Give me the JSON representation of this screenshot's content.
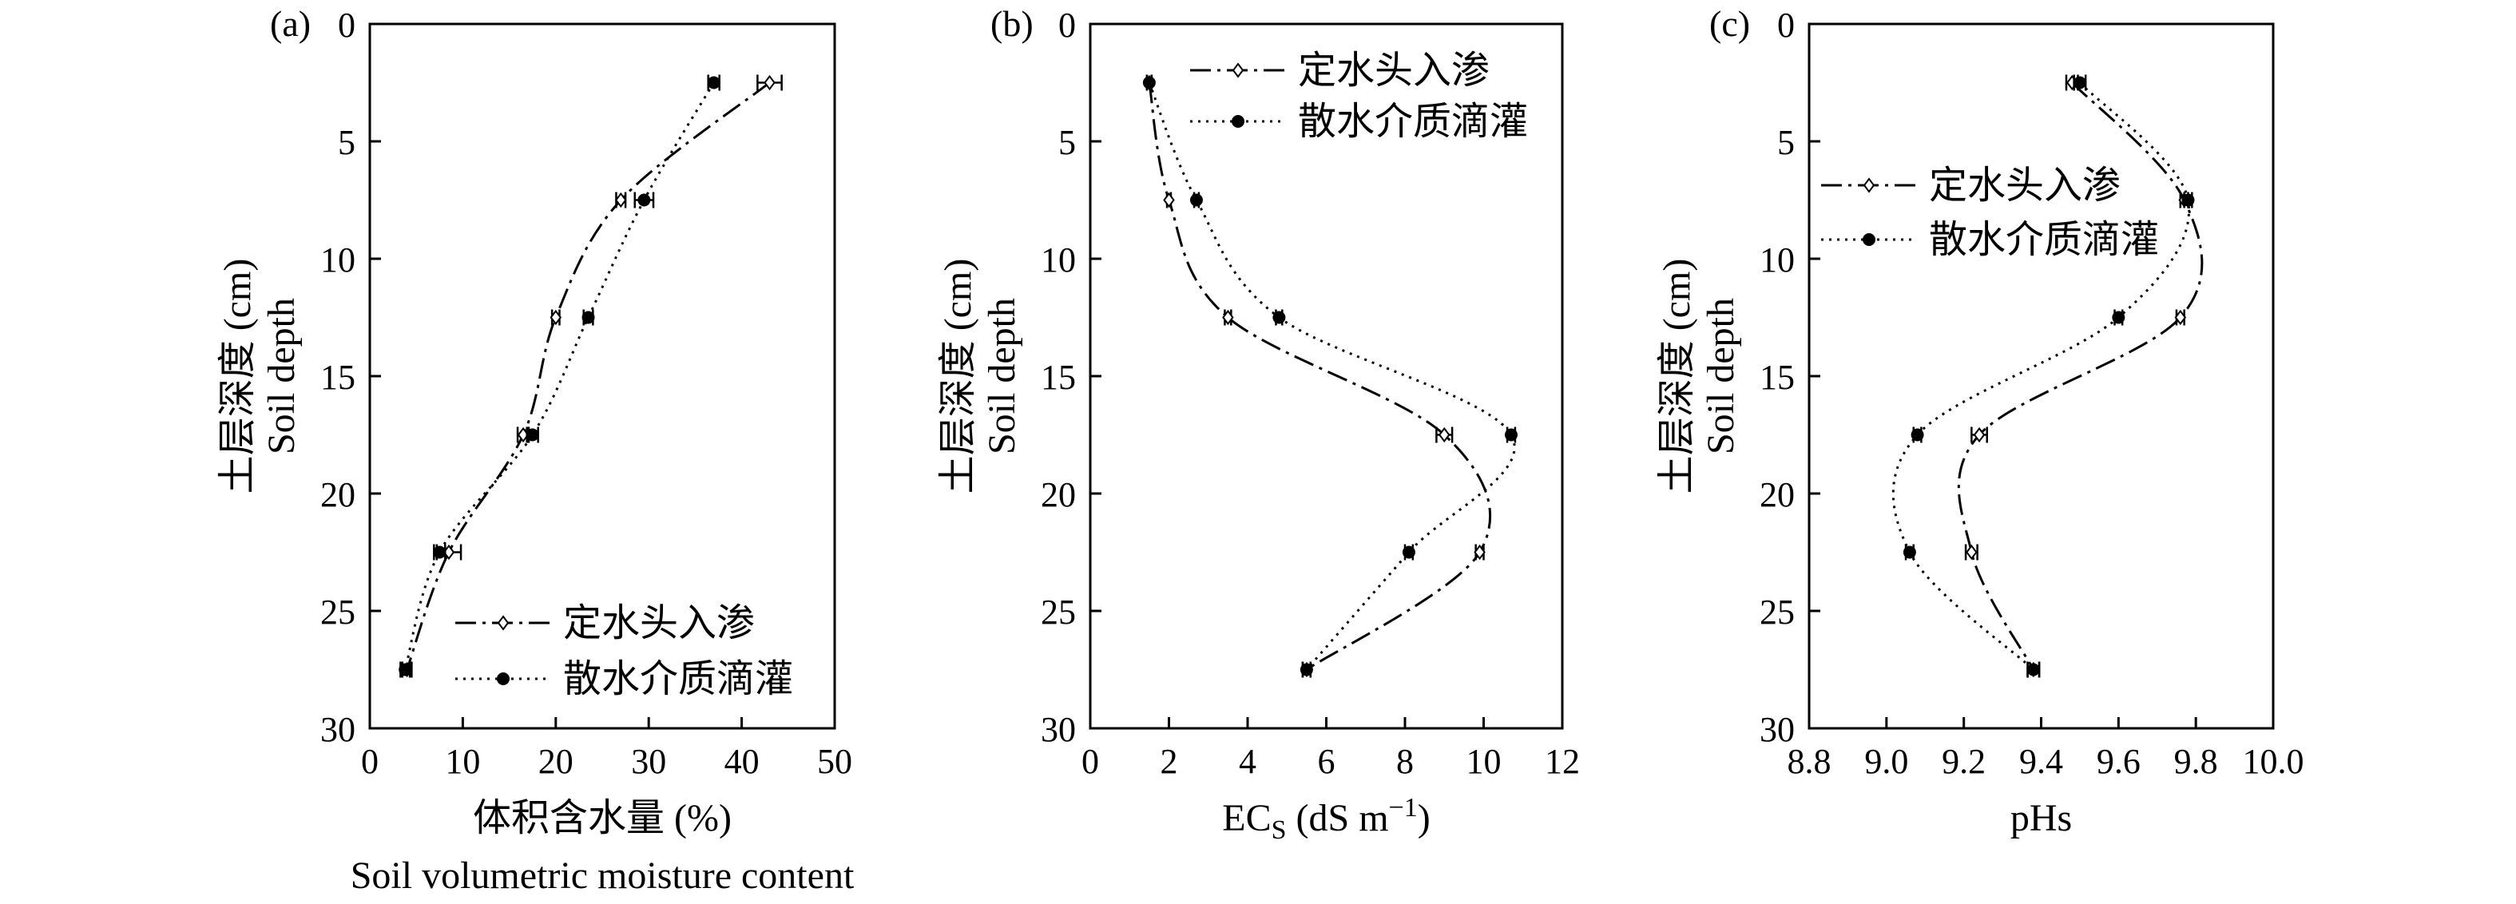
{
  "chart_data": [
    {
      "type": "line",
      "panel_label": "(a)",
      "xlabel": "体积含水量 (%)",
      "xlabel2": "Soil volumetric moisture content",
      "ylabel": "土层深度 (cm)",
      "ylabel2": "Soil depth",
      "xlim": [
        0,
        50
      ],
      "ylim": [
        0,
        30
      ],
      "y_inverted": true,
      "x_ticks": [
        0,
        10,
        20,
        30,
        40,
        50
      ],
      "y_ticks": [
        0,
        5,
        10,
        15,
        20,
        25,
        30
      ],
      "legend_position": "bottom-right",
      "series": [
        {
          "name": "定水头入渗",
          "marker": "open-diamond",
          "line": "dashed",
          "x": [
            43.0,
            27.0,
            20.0,
            16.5,
            8.5,
            4.0
          ],
          "y": [
            2.5,
            7.5,
            12.5,
            17.5,
            22.5,
            27.5
          ],
          "err": [
            1.3,
            0.5,
            0.4,
            0.6,
            1.3,
            0.5
          ]
        },
        {
          "name": "散水介质滴灌",
          "marker": "filled-circle",
          "line": "dotted",
          "x": [
            37.0,
            29.5,
            23.5,
            17.5,
            7.5,
            3.8
          ],
          "y": [
            2.5,
            7.5,
            12.5,
            17.5,
            22.5,
            27.5
          ],
          "err": [
            0.6,
            1.0,
            0.5,
            0.6,
            0.6,
            0.5
          ]
        }
      ]
    },
    {
      "type": "line",
      "panel_label": "(b)",
      "xlabel": "EC",
      "xlabel_sub": "S",
      "xlabel_unit": " (dS m",
      "xlabel_sup": "−1",
      "xlabel_close": ")",
      "ylabel": "土层深度 (cm)",
      "ylabel2": "Soil depth",
      "xlim": [
        0,
        12
      ],
      "ylim": [
        0,
        30
      ],
      "y_inverted": true,
      "x_ticks": [
        0,
        2,
        4,
        6,
        8,
        10,
        12
      ],
      "y_ticks": [
        0,
        5,
        10,
        15,
        20,
        25,
        30
      ],
      "legend_position": "top-right",
      "series": [
        {
          "name": "定水头入渗",
          "marker": "open-diamond",
          "line": "dashed",
          "x": [
            1.5,
            2.0,
            3.5,
            9.0,
            9.9,
            5.5
          ],
          "y": [
            2.5,
            7.5,
            12.5,
            17.5,
            22.5,
            27.5
          ],
          "err": [
            0.06,
            0.05,
            0.08,
            0.2,
            0.1,
            0.1
          ]
        },
        {
          "name": "散水介质滴灌",
          "marker": "filled-circle",
          "line": "dotted",
          "x": [
            1.5,
            2.7,
            4.8,
            10.7,
            8.1,
            5.5
          ],
          "y": [
            2.5,
            7.5,
            12.5,
            17.5,
            22.5,
            27.5
          ],
          "err": [
            0.06,
            0.06,
            0.08,
            0.1,
            0.1,
            0.1
          ]
        }
      ]
    },
    {
      "type": "line",
      "panel_label": "(c)",
      "xlabel": "pHs",
      "ylabel": "土层深度 (cm)",
      "ylabel2": "Soil depth",
      "xlim": [
        8.8,
        10.0
      ],
      "ylim": [
        0,
        30
      ],
      "y_inverted": true,
      "x_ticks": [
        "8.8",
        "9.0",
        "9.2",
        "9.4",
        "9.6",
        "9.8",
        "10.0"
      ],
      "y_ticks": [
        0,
        5,
        10,
        15,
        20,
        25,
        30
      ],
      "legend_position": "top-right",
      "series": [
        {
          "name": "定水头入渗",
          "marker": "open-diamond",
          "line": "dashed",
          "x": [
            9.48,
            9.77,
            9.76,
            9.24,
            9.22,
            9.38
          ],
          "y": [
            2.5,
            7.5,
            12.5,
            17.5,
            22.5,
            27.5
          ],
          "err": [
            0.015,
            0.01,
            0.01,
            0.02,
            0.015,
            0.015
          ]
        },
        {
          "name": "散水介质滴灌",
          "marker": "filled-circle",
          "line": "dotted",
          "x": [
            9.5,
            9.78,
            9.6,
            9.08,
            9.06,
            9.38
          ],
          "y": [
            2.5,
            7.5,
            12.5,
            17.5,
            22.5,
            27.5
          ],
          "err": [
            0.015,
            0.01,
            0.01,
            0.01,
            0.01,
            0.015
          ]
        }
      ]
    }
  ]
}
